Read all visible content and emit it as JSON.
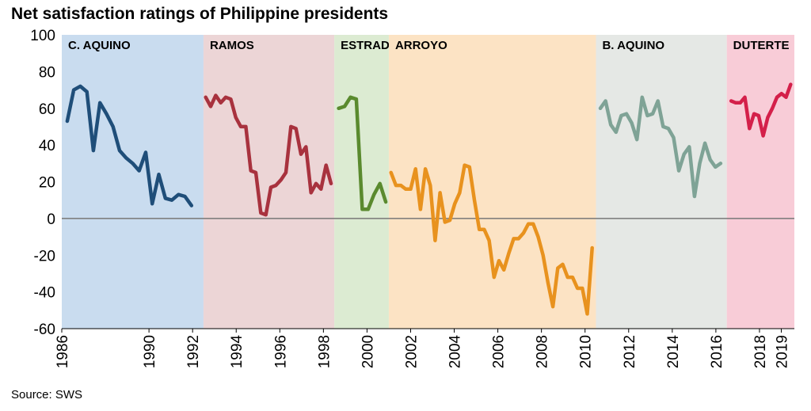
{
  "chart_data": {
    "type": "line",
    "title": "Net satisfaction ratings of Philippine presidents",
    "source": "Source: SWS",
    "xlim": [
      1986,
      2019.6
    ],
    "xticks": [
      1986,
      1990,
      1992,
      1994,
      1996,
      1998,
      2000,
      2002,
      2004,
      2006,
      2008,
      2010,
      2012,
      2014,
      2016,
      2018,
      2019
    ],
    "ylim": [
      -60,
      100
    ],
    "yticks": [
      -60,
      -40,
      -20,
      0,
      20,
      40,
      60,
      80,
      100
    ],
    "series": [
      {
        "name": "C. AQUINO",
        "color": "#1f4e79",
        "band_color": "#c9dcef",
        "period": [
          1986,
          1992.5
        ],
        "x": [
          1986.25,
          1986.55,
          1986.85,
          1987.15,
          1987.45,
          1987.75,
          1988.05,
          1988.35,
          1988.65,
          1988.95,
          1989.25,
          1989.55,
          1989.85,
          1990.15,
          1990.45,
          1990.75,
          1991.05,
          1991.35,
          1991.65,
          1991.95
        ],
        "values": [
          53,
          70,
          72,
          69,
          37,
          63,
          57,
          50,
          37,
          33,
          30,
          26,
          36,
          8,
          24,
          11,
          10,
          13,
          12,
          7
        ]
      },
      {
        "name": "RAMOS",
        "color": "#a8323e",
        "band_color": "#ecd5d6",
        "period": [
          1992.5,
          1998.5
        ],
        "x": [
          1992.6,
          1992.83,
          1993.06,
          1993.29,
          1993.52,
          1993.75,
          1993.98,
          1994.21,
          1994.44,
          1994.67,
          1994.9,
          1995.13,
          1995.36,
          1995.59,
          1995.82,
          1996.05,
          1996.28,
          1996.51,
          1996.74,
          1996.97,
          1997.2,
          1997.43,
          1997.66,
          1997.89,
          1998.12,
          1998.35
        ],
        "values": [
          66,
          61,
          67,
          63,
          66,
          65,
          55,
          50,
          50,
          26,
          25,
          3,
          2,
          17,
          18,
          21,
          25,
          50,
          49,
          35,
          39,
          14,
          19,
          16,
          29,
          19
        ]
      },
      {
        "name": "ESTRADA",
        "color": "#5a8a2e",
        "band_color": "#dcebd2",
        "period": [
          1998.5,
          2001
        ],
        "x": [
          1998.7,
          1998.97,
          1999.24,
          1999.51,
          1999.78,
          2000.05,
          2000.32,
          2000.59,
          2000.86
        ],
        "values": [
          60,
          61,
          66,
          65,
          5,
          5,
          13,
          19,
          9
        ]
      },
      {
        "name": "ARROYO",
        "color": "#e8921e",
        "band_color": "#fce3c4",
        "period": [
          2001,
          2010.5
        ],
        "x": [
          2001.1,
          2001.325,
          2001.55,
          2001.775,
          2002,
          2002.225,
          2002.45,
          2002.675,
          2002.9,
          2003.125,
          2003.35,
          2003.575,
          2003.8,
          2004.025,
          2004.25,
          2004.475,
          2004.7,
          2004.925,
          2005.15,
          2005.375,
          2005.6,
          2005.825,
          2006.05,
          2006.275,
          2006.5,
          2006.725,
          2006.95,
          2007.175,
          2007.4,
          2007.625,
          2007.85,
          2008.075,
          2008.3,
          2008.525,
          2008.75,
          2008.975,
          2009.2,
          2009.425,
          2009.65,
          2009.875,
          2010.1,
          2010.325
        ],
        "values": [
          25,
          18,
          18,
          16,
          16,
          27,
          5,
          27,
          18,
          -12,
          14,
          -2,
          -1,
          8,
          14,
          29,
          28,
          10,
          -6,
          -6,
          -12,
          -32,
          -23,
          -28,
          -19,
          -11,
          -11,
          -8,
          -3,
          -3,
          -10,
          -20,
          -35,
          -48,
          -27,
          -25,
          -32,
          -32,
          -38,
          -38,
          -52,
          -16
        ]
      },
      {
        "name": "B. AQUINO",
        "color": "#7fa396",
        "band_color": "#e5e8e5",
        "period": [
          2010.5,
          2016.5
        ],
        "x": [
          2010.7,
          2010.94,
          2011.18,
          2011.42,
          2011.66,
          2011.9,
          2012.14,
          2012.38,
          2012.62,
          2012.86,
          2013.1,
          2013.34,
          2013.58,
          2013.82,
          2014.06,
          2014.3,
          2014.54,
          2014.78,
          2015.02,
          2015.26,
          2015.5,
          2015.74,
          2015.98,
          2016.22
        ],
        "values": [
          60,
          64,
          51,
          47,
          56,
          57,
          52,
          43,
          66,
          56,
          57,
          64,
          50,
          49,
          44,
          26,
          35,
          39,
          12,
          30,
          41,
          32,
          28,
          30
        ]
      },
      {
        "name": "DUTERTE",
        "color": "#d4204a",
        "band_color": "#f8ccd7",
        "period": [
          2016.5,
          2019.6
        ],
        "x": [
          2016.7,
          2016.91,
          2017.12,
          2017.33,
          2017.54,
          2017.75,
          2017.96,
          2018.17,
          2018.38,
          2018.59,
          2018.8,
          2019.01,
          2019.22,
          2019.43
        ],
        "values": [
          64,
          63,
          63,
          66,
          49,
          57,
          56,
          45,
          55,
          60,
          66,
          68,
          66,
          73
        ]
      }
    ]
  }
}
